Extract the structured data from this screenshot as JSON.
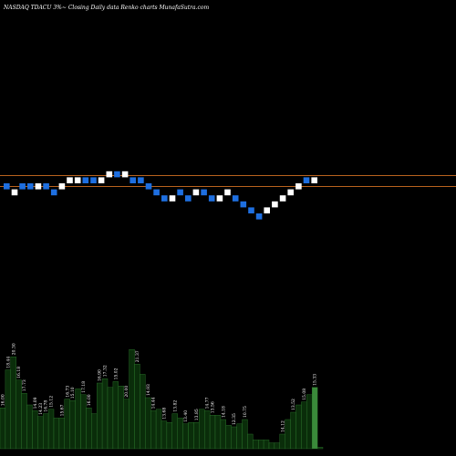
{
  "chart_data": {
    "type": "bar",
    "title": "NASDAQ TDACU 3%~  Closing Daily data  Renko  charts MunafaSutra.com",
    "colors": {
      "background": "#000000",
      "brick_up": "#ffffff",
      "brick_down": "#1e6fe0",
      "reference_line": "#b8621e",
      "volume_bar": "#0a2d0a",
      "volume_bar_edge": "#2f7a2f",
      "volume_bar_highlight": "#3a8a3a"
    },
    "renko": {
      "brick_levels": [
        0,
        -1,
        0,
        0,
        0,
        0,
        -1,
        0,
        1,
        1,
        1,
        1,
        1,
        2,
        2,
        2,
        1,
        1,
        0,
        -1,
        -2,
        -2,
        -1,
        -2,
        -1,
        -1,
        -2,
        -2,
        -1,
        -2,
        -3,
        -4,
        -5,
        -4,
        -3,
        -2,
        -1,
        0,
        1,
        1
      ],
      "brick_colors": [
        "down",
        "up",
        "down",
        "down",
        "up",
        "down",
        "down",
        "up",
        "up",
        "up",
        "down",
        "down",
        "up",
        "up",
        "down",
        "up",
        "down",
        "down",
        "down",
        "down",
        "down",
        "up",
        "down",
        "down",
        "up",
        "down",
        "down",
        "up",
        "up",
        "down",
        "down",
        "down",
        "down",
        "up",
        "up",
        "up",
        "up",
        "up",
        "down",
        "up"
      ]
    },
    "volume": {
      "values": [
        28,
        54,
        63,
        47,
        38,
        30,
        26,
        22,
        24,
        27,
        21,
        21,
        34,
        33,
        41,
        37,
        28,
        24,
        45,
        48,
        42,
        46,
        43,
        34,
        68,
        58,
        51,
        35,
        26,
        27,
        19,
        18,
        24,
        21,
        17,
        18,
        18,
        27,
        26,
        23,
        23,
        20,
        16,
        15,
        17,
        20,
        10,
        6,
        6,
        6,
        4,
        4,
        10,
        20,
        25,
        30,
        32,
        37,
        42,
        1
      ],
      "labels": [
        "16.00",
        "18.44",
        "20.30",
        "16.18",
        "17.73",
        "",
        "14.09",
        "14.23",
        "16.78",
        "15.12",
        "",
        "15.67",
        "16.73",
        "15.10",
        "",
        "17.18",
        "16.00",
        "",
        "16.90",
        "17.32",
        "",
        "15.02",
        "",
        "20.00",
        "",
        "21.37",
        "",
        "14.93",
        "14.44",
        "",
        "13.68",
        "",
        "13.82",
        "",
        "13.40",
        "",
        "13.85",
        "",
        "14.77",
        "13.56",
        "",
        "14.18",
        "",
        "12.35",
        "",
        "10.75",
        "",
        "",
        "",
        "",
        "",
        "",
        "14.12",
        "",
        "13.52",
        "",
        "15.08",
        "",
        "15.33",
        ""
      ]
    }
  }
}
